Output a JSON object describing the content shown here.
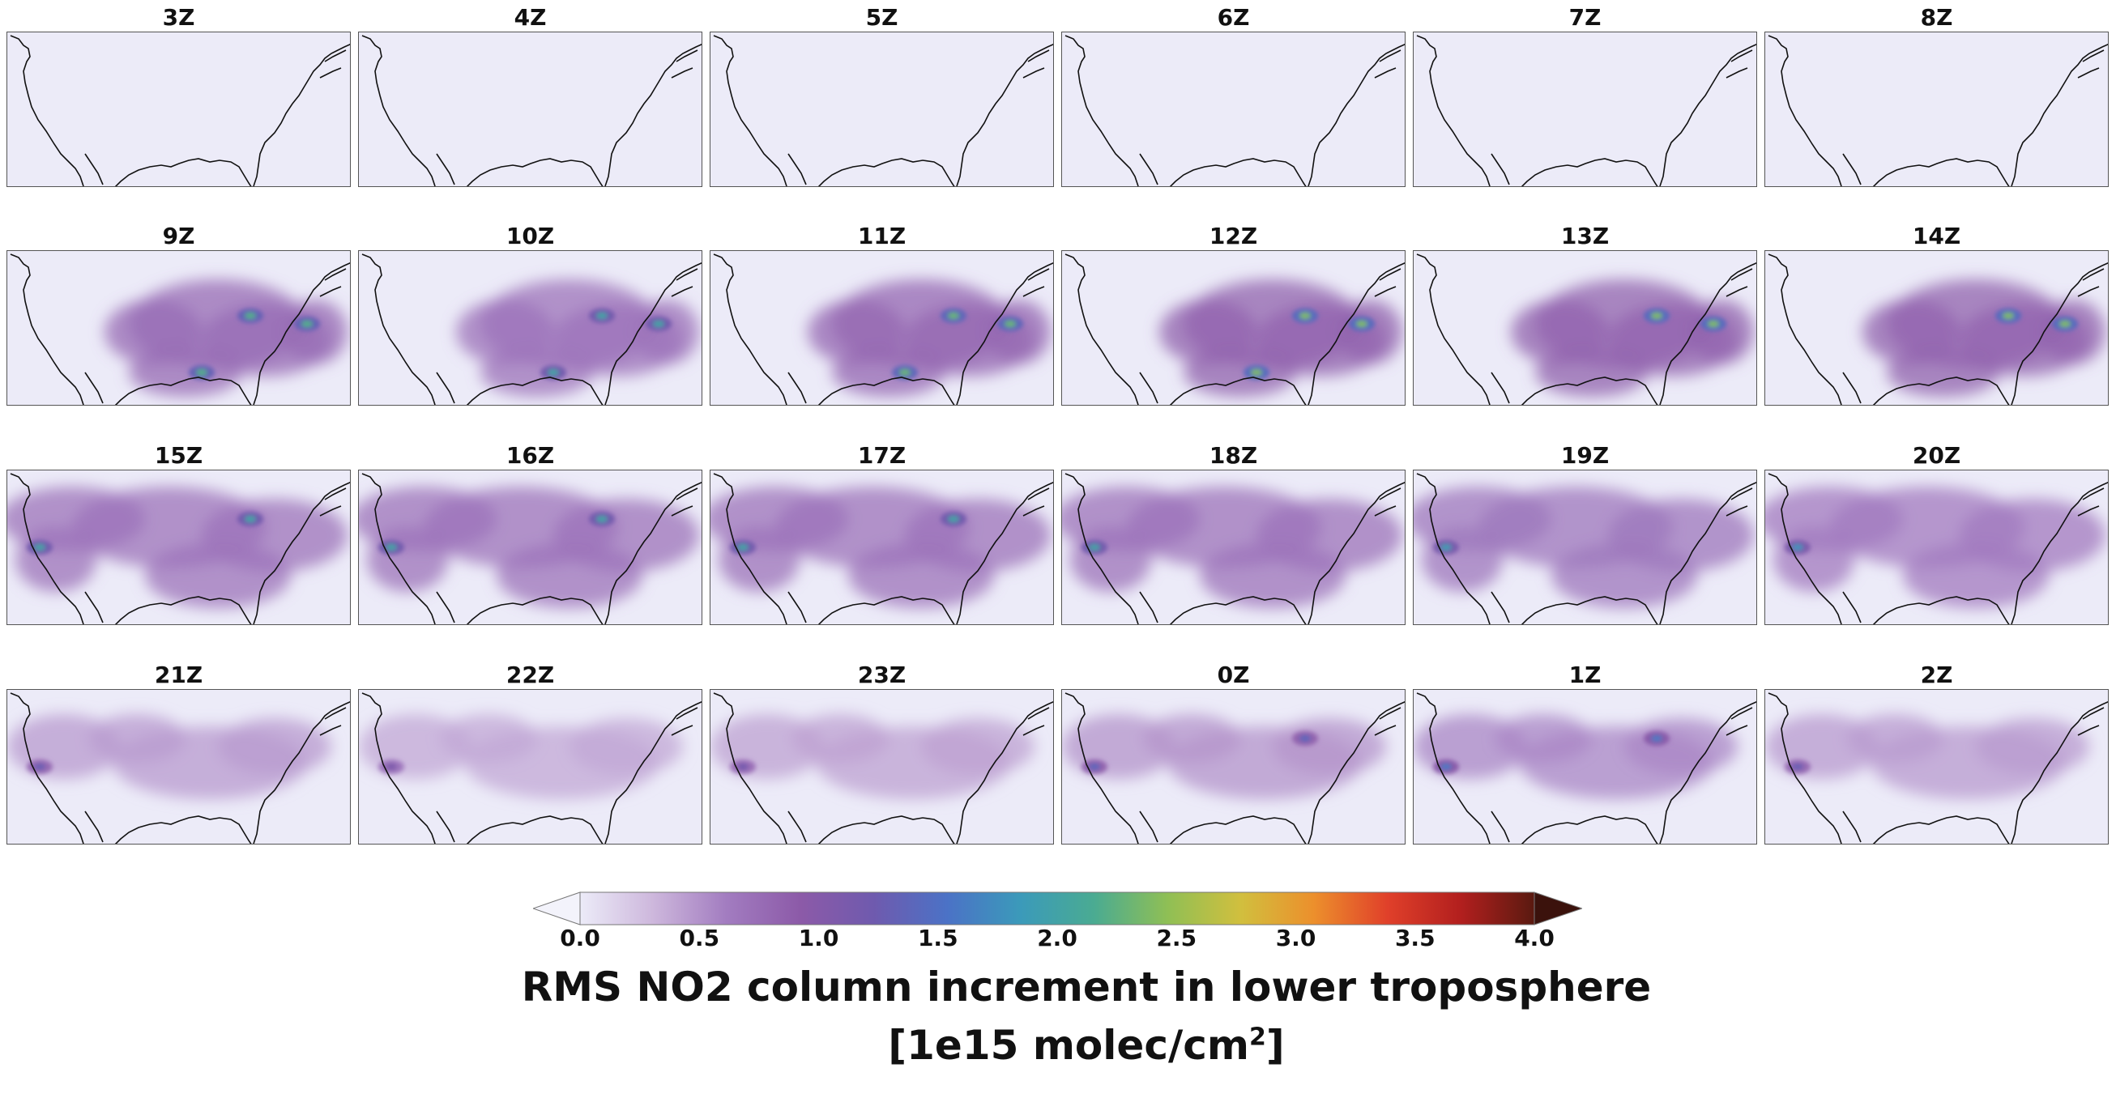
{
  "chart_data": {
    "type": "heatmap",
    "title": "RMS NO2 column increment in lower troposphere",
    "units_prefix": "[1e15 molec/cm",
    "units_sup": "2",
    "units_suffix": "]",
    "region": "Contiguous United States",
    "panels": [
      {
        "label": "3Z",
        "max_value": 0.0,
        "peak_regions": []
      },
      {
        "label": "4Z",
        "max_value": 0.0,
        "peak_regions": []
      },
      {
        "label": "5Z",
        "max_value": 0.0,
        "peak_regions": []
      },
      {
        "label": "6Z",
        "max_value": 0.0,
        "peak_regions": []
      },
      {
        "label": "7Z",
        "max_value": 0.0,
        "peak_regions": []
      },
      {
        "label": "8Z",
        "max_value": 0.0,
        "peak_regions": []
      },
      {
        "label": "9Z",
        "max_value": 2.2,
        "peak_regions": [
          "Ohio Valley",
          "Northeast",
          "Houston"
        ]
      },
      {
        "label": "10Z",
        "max_value": 2.0,
        "peak_regions": [
          "Ohio Valley",
          "Northeast",
          "Houston"
        ]
      },
      {
        "label": "11Z",
        "max_value": 2.3,
        "peak_regions": [
          "Ohio Valley",
          "Northeast",
          "Houston"
        ]
      },
      {
        "label": "12Z",
        "max_value": 2.4,
        "peak_regions": [
          "Ohio Valley",
          "Northeast",
          "Houston"
        ]
      },
      {
        "label": "13Z",
        "max_value": 2.4,
        "peak_regions": [
          "Ohio Valley",
          "Northeast"
        ]
      },
      {
        "label": "14Z",
        "max_value": 2.4,
        "peak_regions": [
          "Ohio Valley",
          "Northeast"
        ]
      },
      {
        "label": "15Z",
        "max_value": 2.0,
        "peak_regions": [
          "California",
          "Great Lakes"
        ]
      },
      {
        "label": "16Z",
        "max_value": 2.0,
        "peak_regions": [
          "California",
          "Great Lakes"
        ]
      },
      {
        "label": "17Z",
        "max_value": 2.0,
        "peak_regions": [
          "California",
          "Great Lakes"
        ]
      },
      {
        "label": "18Z",
        "max_value": 2.0,
        "peak_regions": [
          "California"
        ]
      },
      {
        "label": "19Z",
        "max_value": 1.9,
        "peak_regions": [
          "California"
        ]
      },
      {
        "label": "20Z",
        "max_value": 1.8,
        "peak_regions": [
          "California"
        ]
      },
      {
        "label": "21Z",
        "max_value": 1.3,
        "peak_regions": [
          "California"
        ]
      },
      {
        "label": "22Z",
        "max_value": 1.1,
        "peak_regions": [
          "California"
        ]
      },
      {
        "label": "23Z",
        "max_value": 1.2,
        "peak_regions": [
          "California"
        ]
      },
      {
        "label": "0Z",
        "max_value": 1.4,
        "peak_regions": [
          "California",
          "Great Lakes"
        ]
      },
      {
        "label": "1Z",
        "max_value": 1.6,
        "peak_regions": [
          "California",
          "Great Lakes"
        ]
      },
      {
        "label": "2Z",
        "max_value": 1.3,
        "peak_regions": [
          "California"
        ]
      }
    ],
    "colorbar": {
      "vmin": 0.0,
      "vmax": 4.0,
      "extend": "both",
      "ticks": [
        "0.0",
        "0.5",
        "1.0",
        "1.5",
        "2.0",
        "2.5",
        "3.0",
        "3.5",
        "4.0"
      ],
      "colors": [
        "#ecebf8",
        "#cdb7dc",
        "#a27cc0",
        "#8c5aa8",
        "#6f5aae",
        "#4b72c6",
        "#3b9aba",
        "#4aab92",
        "#8fbf55",
        "#d1bf3e",
        "#ec8f2c",
        "#e0402a",
        "#b21f1e",
        "#5a1a10"
      ],
      "over_color": "#3b120c",
      "under_color": "#f3f3fb"
    }
  }
}
